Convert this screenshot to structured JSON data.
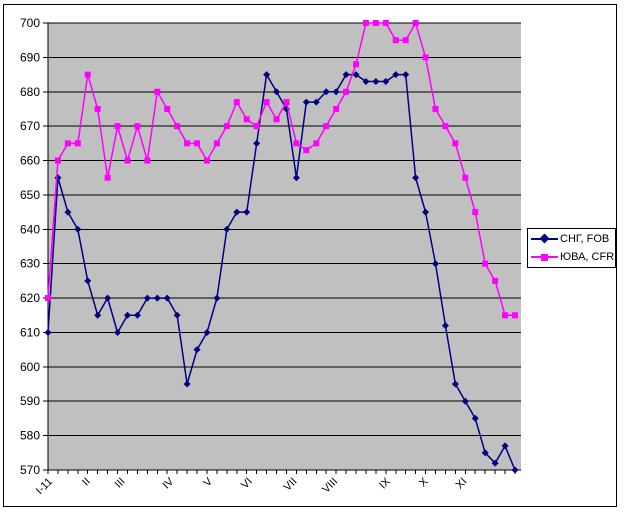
{
  "frame": {
    "border_color": "#000000",
    "background": "#ffffff"
  },
  "chart_data": {
    "type": "line",
    "title": "",
    "plot_background": "#c0c0c0",
    "grid": true,
    "grid_color": "#000000",
    "axis_color": "#000000",
    "y_axis": {
      "min": 570,
      "max": 700,
      "step": 10,
      "ticks": [
        570,
        580,
        590,
        600,
        610,
        620,
        630,
        640,
        650,
        660,
        670,
        680,
        690,
        700
      ]
    },
    "x_axis": {
      "labels": [
        {
          "label": "I-11",
          "week": 0
        },
        {
          "label": "II",
          "week": 3.8
        },
        {
          "label": "III",
          "week": 7.3
        },
        {
          "label": "IV",
          "week": 12.2
        },
        {
          "label": "V",
          "week": 16.1
        },
        {
          "label": "VI",
          "week": 20.1
        },
        {
          "label": "VII",
          "week": 24.6
        },
        {
          "label": "VIII",
          "week": 28.7
        },
        {
          "label": "IX",
          "week": 34
        },
        {
          "label": "X",
          "week": 37.8
        },
        {
          "label": "XI",
          "week": 41.7
        }
      ]
    },
    "series": [
      {
        "name": "СНГ, FOB",
        "color": "#000080",
        "marker": "diamond",
        "values": [
          610,
          655,
          645,
          640,
          625,
          615,
          620,
          610,
          615,
          615,
          620,
          620,
          620,
          615,
          595,
          605,
          610,
          620,
          640,
          645,
          645,
          665,
          685,
          680,
          675,
          655,
          677,
          677,
          680,
          680,
          685,
          685,
          683,
          683,
          683,
          685,
          685,
          655,
          645,
          630,
          612,
          595,
          590,
          585,
          575,
          572,
          577,
          570
        ]
      },
      {
        "name": "ЮВА, CFR",
        "color": "#ff00ff",
        "marker": "square",
        "values": [
          620,
          660,
          665,
          665,
          685,
          675,
          655,
          670,
          660,
          670,
          660,
          680,
          675,
          670,
          665,
          665,
          660,
          665,
          670,
          677,
          672,
          670,
          677,
          672,
          677,
          665,
          663,
          665,
          670,
          675,
          680,
          688,
          700,
          700,
          700,
          695,
          695,
          700,
          690,
          675,
          670,
          665,
          655,
          645,
          630,
          625,
          615,
          615
        ]
      }
    ],
    "legend": {
      "position": "right"
    }
  }
}
